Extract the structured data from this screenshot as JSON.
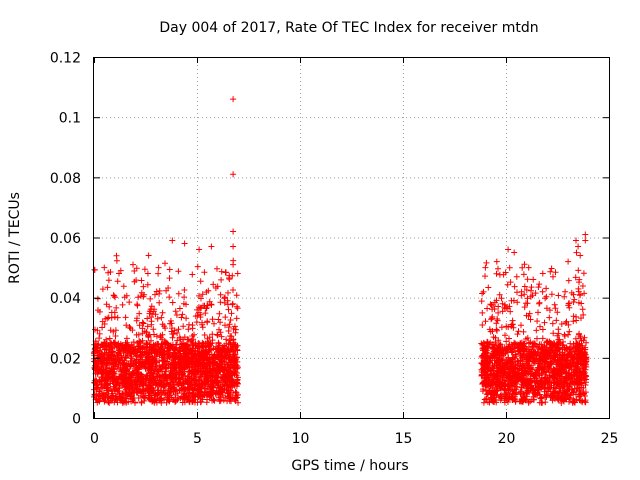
{
  "chart_data": {
    "type": "scatter",
    "title": "Day 004 of 2017, Rate Of TEC Index for receiver mtdn",
    "xlabel": "GPS time / hours",
    "ylabel": "ROTI / TECUs",
    "xlim": [
      0,
      25
    ],
    "ylim": [
      0,
      0.12
    ],
    "xticks": [
      "0",
      "5",
      "10",
      "15",
      "20",
      "25"
    ],
    "yticks": [
      "0",
      "0.02",
      "0.04",
      "0.06",
      "0.08",
      "0.1",
      "0.12"
    ],
    "grid": true,
    "marker": "+",
    "color": "#ff0000",
    "series": [
      {
        "name": "ROTI",
        "segments": [
          {
            "x_start": 0.0,
            "x_end": 7.0,
            "typical_min": 0.005,
            "typical_max": 0.025,
            "peak_max": 0.05
          },
          {
            "x_start": 18.8,
            "x_end": 23.9,
            "typical_min": 0.005,
            "typical_max": 0.025,
            "peak_max": 0.05
          }
        ],
        "outliers": [
          {
            "x": 6.75,
            "y": 0.106
          },
          {
            "x": 6.75,
            "y": 0.081
          },
          {
            "x": 6.75,
            "y": 0.062
          },
          {
            "x": 6.75,
            "y": 0.051
          },
          {
            "x": 6.75,
            "y": 0.057
          },
          {
            "x": 5.7,
            "y": 0.057
          },
          {
            "x": 3.8,
            "y": 0.059
          },
          {
            "x": 4.4,
            "y": 0.058
          },
          {
            "x": 5.1,
            "y": 0.056
          },
          {
            "x": 2.65,
            "y": 0.054
          },
          {
            "x": 0.5,
            "y": 0.05
          },
          {
            "x": 1.3,
            "y": 0.049
          },
          {
            "x": 20.1,
            "y": 0.056
          },
          {
            "x": 20.4,
            "y": 0.055
          },
          {
            "x": 21.1,
            "y": 0.05
          },
          {
            "x": 23.4,
            "y": 0.059
          },
          {
            "x": 23.5,
            "y": 0.057
          },
          {
            "x": 23.6,
            "y": 0.054
          },
          {
            "x": 23.85,
            "y": 0.061
          },
          {
            "x": 23.85,
            "y": 0.059
          },
          {
            "x": 19.0,
            "y": 0.05
          }
        ]
      }
    ]
  }
}
